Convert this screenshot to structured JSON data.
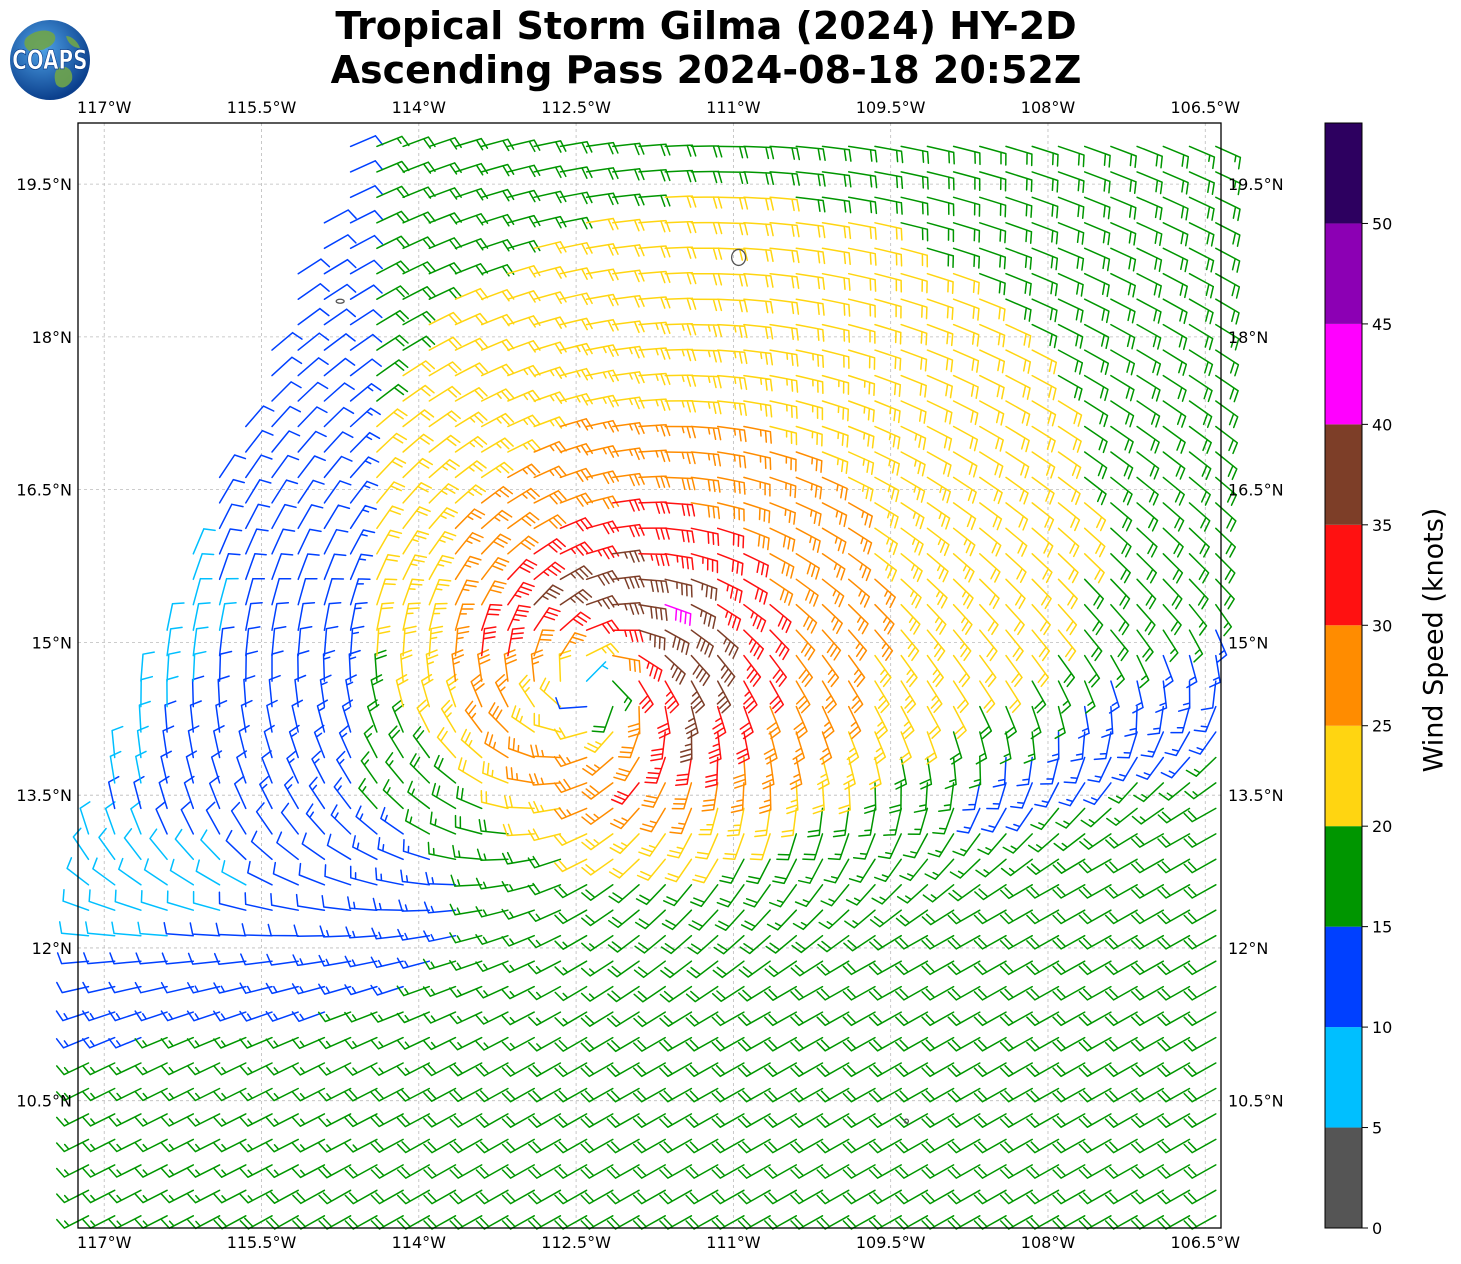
{
  "title": {
    "line1": "Tropical Storm Gilma (2024) HY-2D",
    "line2": "Ascending Pass 2024-08-18 20:52Z"
  },
  "logo": {
    "text": "COAPS",
    "icon": "globe-icon"
  },
  "map": {
    "lon_range": [
      -117.25,
      -106.35
    ],
    "lat_range": [
      9.25,
      20.1
    ],
    "lon_ticks": [
      {
        "value": -117,
        "label": "117°W"
      },
      {
        "value": -115.5,
        "label": "115.5°W"
      },
      {
        "value": -114,
        "label": "114°W"
      },
      {
        "value": -112.5,
        "label": "112.5°W"
      },
      {
        "value": -111,
        "label": "111°W"
      },
      {
        "value": -109.5,
        "label": "109.5°W"
      },
      {
        "value": -108,
        "label": "108°W"
      },
      {
        "value": -106.5,
        "label": "106.5°W"
      }
    ],
    "lat_ticks": [
      {
        "value": 19.5,
        "label": "19.5°N"
      },
      {
        "value": 18,
        "label": "18°N"
      },
      {
        "value": 16.5,
        "label": "16.5°N"
      },
      {
        "value": 15,
        "label": "15°N"
      },
      {
        "value": 13.5,
        "label": "13.5°N"
      },
      {
        "value": 12,
        "label": "12°N"
      },
      {
        "value": 10.5,
        "label": "10.5°N"
      }
    ],
    "gridlines": true,
    "storm_center": {
      "lon": -112.3,
      "lat": 14.6
    },
    "wind_field": {
      "type": "barbs",
      "grid_spacing_deg": 0.25,
      "max_wind_kt": 32,
      "rmw_deg": 1.0,
      "background_flow_kt": {
        "u": -6,
        "v": 2
      },
      "southwest_monsoon_kt": {
        "u": 16,
        "v": 9
      }
    }
  },
  "colorbar": {
    "label": "Wind Speed (knots)",
    "bins": [
      {
        "min": 0,
        "max": 5,
        "color": "#555555"
      },
      {
        "min": 5,
        "max": 10,
        "color": "#00bfff"
      },
      {
        "min": 10,
        "max": 15,
        "color": "#0040ff"
      },
      {
        "min": 15,
        "max": 20,
        "color": "#009600"
      },
      {
        "min": 20,
        "max": 25,
        "color": "#ffd511"
      },
      {
        "min": 25,
        "max": 30,
        "color": "#ff8c00"
      },
      {
        "min": 30,
        "max": 35,
        "color": "#ff1111"
      },
      {
        "min": 35,
        "max": 40,
        "color": "#7d3e28"
      },
      {
        "min": 40,
        "max": 45,
        "color": "#ff00ff"
      },
      {
        "min": 45,
        "max": 50,
        "color": "#8c00b4"
      },
      {
        "min": 50,
        "max": 55,
        "color": "#2d0060"
      }
    ],
    "tick_labels": [
      "0",
      "5",
      "10",
      "15",
      "20",
      "25",
      "30",
      "35",
      "40",
      "45",
      "50"
    ]
  }
}
